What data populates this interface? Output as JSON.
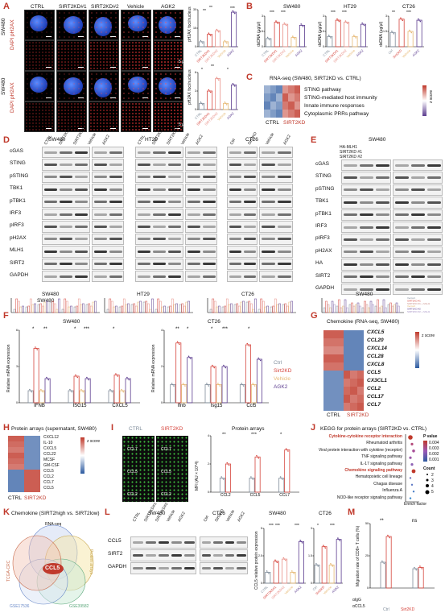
{
  "panel_letters": [
    "A",
    "B",
    "C",
    "D",
    "E",
    "F",
    "G",
    "H",
    "I",
    "J",
    "K",
    "L",
    "M"
  ],
  "panelA": {
    "col_labels": [
      "CTRL",
      "SIRT2KD#1",
      "SIRT2KD#2",
      "Vehicle",
      "AGK2"
    ],
    "row_labels": [
      "SW480",
      "SW480"
    ],
    "stain_label": "DAPI pH2AX",
    "scale_label": "5 μm",
    "ylabel": "pH2AX foci/nucleus"
  },
  "panelB": {
    "titles": [
      "SW480",
      "HT29",
      "CT26"
    ],
    "ylabel": "dsDNA (μg/μl)",
    "xlabels_human": [
      "CTRL",
      "SIRT2KD#1",
      "SIRT2KD#2",
      "Vehicle",
      "AGK2"
    ],
    "xlabels_mouse": [
      "Ctrl",
      "Sirt2KD",
      "Vehicle",
      "AGK2"
    ]
  },
  "panelC": {
    "title": "RNA-seq (SW480, SIRT2KD vs. CTRL)",
    "rows": [
      "STING pathway",
      "STING-mediated host immunity",
      "Innate immune responses",
      "Cytoplasmic PRRs pathway"
    ],
    "cols": [
      "CTRL",
      "SIRT2KD"
    ],
    "legend_title": "z score"
  },
  "panelD": {
    "cell_lines": [
      "SW480",
      "HT29",
      "CT26"
    ],
    "lanes_human": [
      "CTRL",
      "SIRT2KD#1",
      "SIRT2KD#2",
      "Vehicle",
      "AGK2"
    ],
    "lanes_mouse": [
      "Ctrl",
      "Sirt2KD",
      "Vehicle",
      "AGK2"
    ],
    "proteins": [
      "cGAS",
      "STING",
      "pSTING",
      "TBK1",
      "pTBK1",
      "IRF3",
      "pIRF3",
      "pH2AX",
      "MLH1",
      "SIRT2",
      "GAPDH"
    ],
    "quant_titles": [
      "SW480",
      "HT29",
      "CT26"
    ],
    "quant_ylabel": "Relative protein expression",
    "legend_human": [
      "CTRL",
      "SIRT2KD#1",
      "SIRT2KD#2",
      "Vehicle",
      "AGK2"
    ],
    "legend_mouse": [
      "Ctrl",
      "Sirt2KD",
      "Vehicle",
      "AGK2"
    ]
  },
  "panelE": {
    "cell_line": "SW480",
    "rows_top": [
      "HA-MLH1",
      "SIRT2KD #1",
      "SIRT2KD #2"
    ],
    "proteins": [
      "cGAS",
      "STING",
      "pSTING",
      "TBK1",
      "pTBK1",
      "IRF3",
      "pIRF3",
      "pH2AX",
      "HA",
      "SIRT2",
      "GAPDH"
    ],
    "quant_title": "SW480",
    "legend": [
      "Vector1",
      "SIRT2KD #1",
      "SIRT2KD #1 + MLH1",
      "Vector2",
      "SIRT2KD #2",
      "SIRT2KD #2 + MLH1"
    ]
  },
  "panelF": {
    "titles": [
      "SW480",
      "CT26"
    ],
    "ylabel": "Relative mRNA expression",
    "genes_human": [
      "IFNB",
      "ISG15",
      "CXCL5"
    ],
    "genes_mouse": [
      "Ifnb",
      "Isg15",
      "Ccl5"
    ],
    "legend": [
      "Ctrl",
      "Sirt2KD",
      "Vehicle",
      "AGK2"
    ]
  },
  "panelG": {
    "title": "Chemokine (RNA-seq, SW480)",
    "genes": [
      "CXCL5",
      "CCL20",
      "CXCL14",
      "CCL28",
      "CXCL8",
      "CCL5",
      "CX3CL1",
      "CCL2",
      "CCL17",
      "CCL7"
    ],
    "cols": [
      "CTRL",
      "SIRT2KD"
    ],
    "legend_title": "z score"
  },
  "panelH": {
    "title": "Protein arrays (supernatant, SW480)",
    "rows": [
      "CXCL12",
      "IL-10",
      "CXCL5",
      "CCL22",
      "MCSF",
      "GM-CSF",
      "CCL5",
      "CCL2",
      "CCL7",
      "CCL5"
    ],
    "cols": [
      "CTRL",
      "SIRT2KD"
    ],
    "legend_title": "z score"
  },
  "panelI": {
    "legend": [
      "CTRL",
      "SIRT2KD"
    ],
    "array_labels": [
      "CCL7",
      "CCL5",
      "CCL2"
    ],
    "bar_title": "Protein arrays",
    "ylabel": "MFI (AU × 10^4)",
    "categories": [
      "CCL2",
      "CCL5",
      "CCL7"
    ]
  },
  "panelJ": {
    "title": "KEGG for protein arrays (SIRT2KD vs. CTRL)",
    "terms": [
      "Cytokine-cytokine receptor interaction",
      "Rheumatoid arthritis",
      "Viral protein interaction with cytokine (receptor)",
      "TNF signaling pathway",
      "IL-17 signaling pathway",
      "Chemokine signaling pathway",
      "Hematopoietic cell lineage",
      "Chagas disease",
      "Influenza A",
      "NOD-like receptor signaling pathway"
    ],
    "xlabel": "Enrich factor",
    "legend_p": "P value",
    "legend_count": "Count",
    "p_ticks": [
      "0.004",
      "0.003",
      "0.002",
      "0.001"
    ],
    "count_ticks": [
      "2",
      "3",
      "4",
      "5"
    ]
  },
  "panelK": {
    "title": "Chemokine (SIRT2high vs. SIRT2low)",
    "sets": [
      "RNA-seq",
      "Protein arrays",
      "GSE39582",
      "GSE17536",
      "TCGA-CRC"
    ],
    "center": "CCL5"
  },
  "panelL": {
    "cell_lines": [
      "SW480",
      "CT26"
    ],
    "lanes_human": [
      "CTRL",
      "SIRT2KD#1",
      "SIRT2KD#2",
      "Vehicle",
      "AGK2"
    ],
    "lanes_mouse": [
      "Ctrl",
      "Sirt2KD",
      "Vehicle",
      "AGK2"
    ],
    "proteins": [
      "CCL5",
      "SIRT2",
      "GAPDH"
    ],
    "quant_titles": [
      "SW480",
      "CT26"
    ],
    "quant_ylabel": "CCL5 relative protein expression"
  },
  "panelM": {
    "ylabel": "Migration rate of CD8+ T cells (%)",
    "row_labels": [
      "αIgG",
      "αCCL5"
    ],
    "legend": [
      "Ctrl",
      "Sirt2KD"
    ]
  },
  "sig": [
    "*",
    "**",
    "***",
    "ns"
  ],
  "colors": {
    "ctrl": "#7f8c9a",
    "kd1": "#d6453d",
    "kd2": "#e88f87",
    "vehicle": "#e6b873",
    "agk2": "#5c3d8f",
    "heat_hi": "#c0392b",
    "heat_lo": "#2c5aa0",
    "nucleus": "#2a55e0",
    "foci": "#ff2a2a"
  },
  "chart_data": [
    {
      "panel": "A-top",
      "type": "bar",
      "title": "",
      "ylabel": "pH2AX foci/nucleus",
      "categories": [
        "CTRL",
        "SIRT2KD#1",
        "SIRT2KD#2",
        "Vehicle",
        "AGK2"
      ],
      "values": [
        4,
        10,
        13,
        4,
        28
      ],
      "ylim": [
        0,
        30
      ]
    },
    {
      "panel": "A-bottom",
      "type": "bar",
      "title": "",
      "ylabel": "pH2AX foci/nucleus",
      "categories": [
        "CTRL",
        "SIRT2KD#1",
        "SIRT2KD#2",
        "Vehicle",
        "AGK2"
      ],
      "values": [
        1,
        3,
        5,
        1,
        4
      ],
      "ylim": [
        0,
        6
      ]
    },
    {
      "panel": "B-SW480",
      "type": "bar",
      "title": "SW480",
      "ylabel": "dsDNA (μg/μl)",
      "categories": [
        "CTRL",
        "SIRT2KD#1",
        "SIRT2KD#2",
        "Vehicle",
        "AGK2"
      ],
      "values": [
        0.8,
        2.4,
        2.2,
        0.9,
        2.1
      ],
      "ylim": [
        0,
        3
      ]
    },
    {
      "panel": "B-HT29",
      "type": "bar",
      "title": "HT29",
      "ylabel": "dsDNA (μg/μl)",
      "categories": [
        "CTRL",
        "SIRT2KD#1",
        "SIRT2KD#2",
        "Vehicle",
        "AGK2"
      ],
      "values": [
        1.0,
        2.6,
        2.4,
        1.0,
        2.2
      ],
      "ylim": [
        0,
        3
      ]
    },
    {
      "panel": "B-CT26",
      "type": "bar",
      "title": "CT26",
      "ylabel": "dsDNA (μg/μl)",
      "categories": [
        "Ctrl",
        "Sirt2KD",
        "Vehicle",
        "AGK2"
      ],
      "values": [
        1.4,
        2.7,
        1.5,
        2.6
      ],
      "ylim": [
        0,
        3
      ]
    },
    {
      "panel": "F-SW480",
      "type": "bar",
      "title": "SW480",
      "ylabel": "Relative mRNA expression",
      "categories": [
        "IFNB",
        "ISG15",
        "CXCL5"
      ],
      "series": [
        {
          "name": "Ctrl",
          "values": [
            1,
            1,
            1
          ]
        },
        {
          "name": "Sirt2KD",
          "values": [
            4.5,
            2.2,
            2.3
          ]
        },
        {
          "name": "Vehicle",
          "values": [
            1,
            1,
            1
          ]
        },
        {
          "name": "AGK2",
          "values": [
            2.0,
            2.0,
            2.0
          ]
        }
      ],
      "ylim": [
        0,
        6
      ]
    },
    {
      "panel": "F-CT26",
      "type": "bar",
      "title": "CT26",
      "ylabel": "Relative mRNA expression",
      "categories": [
        "Ifnb",
        "Isg15",
        "Ccl5"
      ],
      "series": [
        {
          "name": "Ctrl",
          "values": [
            1,
            1,
            1
          ]
        },
        {
          "name": "Sirt2KD",
          "values": [
            3.3,
            2.0,
            3.2
          ]
        },
        {
          "name": "Vehicle",
          "values": [
            1,
            1,
            1
          ]
        },
        {
          "name": "AGK2",
          "values": [
            2.5,
            2.0,
            2.4
          ]
        }
      ],
      "ylim": [
        0,
        4
      ]
    },
    {
      "panel": "I",
      "type": "bar",
      "title": "Protein arrays",
      "ylabel": "MFI (AU × 10^4)",
      "categories": [
        "CCL2",
        "CCL5",
        "CCL7"
      ],
      "series": [
        {
          "name": "CTRL",
          "values": [
            1.0,
            1.0,
            1.0
          ]
        },
        {
          "name": "SIRT2KD",
          "values": [
            2.0,
            2.5,
            3.0
          ]
        }
      ],
      "ylim": [
        0,
        4
      ]
    },
    {
      "panel": "L-SW480",
      "type": "bar",
      "title": "SW480",
      "ylabel": "CCL5 relative protein expression",
      "categories": [
        "CTRL",
        "SIRT2KD#1",
        "SIRT2KD#2",
        "Vehicle",
        "AGK2"
      ],
      "values": [
        1,
        2.0,
        2.2,
        1,
        3.8
      ],
      "ylim": [
        0,
        5
      ]
    },
    {
      "panel": "L-CT26",
      "type": "bar",
      "title": "CT26",
      "ylabel": "CCL5 relative protein expression",
      "categories": [
        "Ctrl",
        "Sirt2KD",
        "Vehicle",
        "AGK2"
      ],
      "values": [
        1,
        2.0,
        1,
        2.4
      ],
      "ylim": [
        0,
        3
      ]
    },
    {
      "panel": "M",
      "type": "bar",
      "title": "",
      "ylabel": "Migration rate of CD8+ T cells (%)",
      "categories": [
        "αIgG",
        "αCCL5"
      ],
      "series": [
        {
          "name": "Ctrl",
          "values": [
            20,
            15
          ]
        },
        {
          "name": "Sirt2KD",
          "values": [
            40,
            16
          ]
        }
      ],
      "ylim": [
        0,
        50
      ]
    }
  ]
}
